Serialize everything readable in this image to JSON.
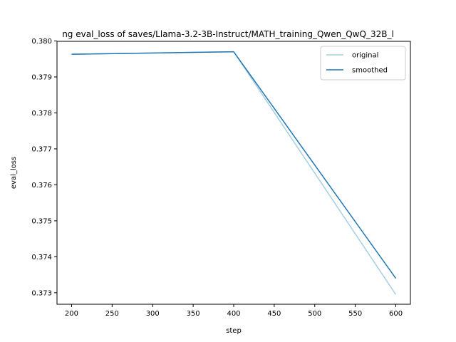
{
  "chart_data": {
    "type": "line",
    "title": "ng eval_loss of saves/Llama-3.2-3B-Instruct/MATH_training_Qwen_QwQ_32B_l",
    "xlabel": "step",
    "ylabel": "eval_loss",
    "xlim": [
      182,
      618
    ],
    "ylim": [
      0.37268,
      0.37999
    ],
    "xticks": [
      200,
      250,
      300,
      350,
      400,
      450,
      500,
      550,
      600
    ],
    "yticks": [
      0.373,
      0.374,
      0.375,
      0.376,
      0.377,
      0.378,
      0.379,
      0.38
    ],
    "grid": false,
    "legend_position": "top-right",
    "series": [
      {
        "name": "original",
        "color": "#a6cee3",
        "x": [
          200,
          400,
          600
        ],
        "y": [
          0.37963,
          0.3797,
          0.37295
        ]
      },
      {
        "name": "smoothed",
        "color": "#1f77b4",
        "x": [
          200,
          400,
          600
        ],
        "y": [
          0.37963,
          0.3797,
          0.3734
        ]
      }
    ]
  }
}
